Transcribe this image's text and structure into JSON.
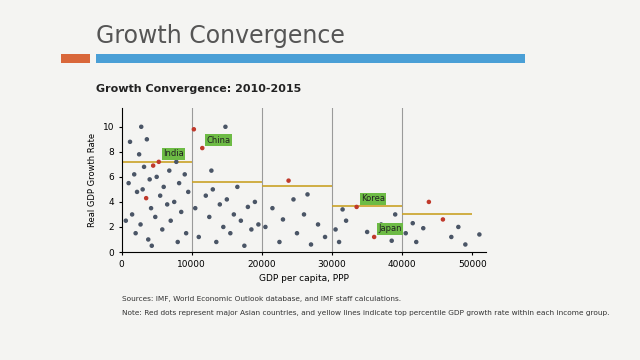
{
  "slide_title": "Growth Convergence",
  "chart_data": {
    "type": "scatter",
    "title": "Growth Convergence: 2010-2015",
    "x_label": "GDP per capita, PPP",
    "y_label": "Real GDP Growth Rate",
    "x": [
      1000,
      1500,
      1800,
      2000,
      2200,
      2500,
      2700,
      3000,
      3200,
      3800,
      4000,
      4200,
      4800,
      5000,
      5500,
      5800,
      6000,
      6500,
      6800,
      7000,
      7500,
      8000,
      8200,
      8500,
      9000,
      9200,
      9500,
      2800,
      1200,
      3600,
      6200,
      7800,
      600,
      4300,
      10500,
      11000,
      12000,
      12500,
      13000,
      13500,
      14000,
      14500,
      15000,
      15500,
      16000,
      16500,
      17000,
      17500,
      18000,
      18500,
      19000,
      19500,
      14800,
      12800,
      20500,
      21500,
      22500,
      23000,
      24500,
      25000,
      26000,
      27000,
      28000,
      29000,
      26500,
      30500,
      31000,
      32000,
      35000,
      37000,
      38500,
      39000,
      31500,
      40500,
      41500,
      42000,
      43000,
      47000,
      48000,
      49000,
      51000,
      3500,
      4500,
      5300,
      6300,
      10300,
      11500,
      23800,
      33500,
      36000,
      43800,
      45800
    ],
    "values": [
      5.5,
      3.0,
      6.2,
      1.5,
      4.8,
      7.8,
      2.2,
      5.0,
      6.8,
      1.0,
      5.8,
      3.5,
      2.8,
      6.0,
      4.5,
      1.8,
      5.2,
      3.8,
      6.5,
      2.5,
      4.0,
      0.8,
      5.5,
      3.2,
      6.2,
      1.5,
      4.8,
      10.0,
      8.8,
      9.0,
      8.0,
      7.2,
      2.5,
      0.5,
      3.5,
      1.2,
      4.5,
      2.8,
      5.0,
      0.8,
      3.8,
      2.0,
      4.2,
      1.5,
      3.0,
      5.2,
      2.5,
      0.5,
      3.6,
      1.8,
      4.0,
      2.2,
      10.0,
      6.5,
      2.0,
      3.5,
      0.8,
      2.6,
      4.2,
      1.5,
      3.0,
      0.6,
      2.2,
      1.2,
      4.6,
      1.8,
      0.8,
      2.5,
      1.6,
      2.2,
      0.9,
      3.0,
      3.4,
      1.5,
      2.3,
      0.8,
      1.9,
      1.2,
      2.0,
      0.6,
      1.4,
      4.3,
      6.9,
      7.2,
      7.6,
      9.8,
      8.3,
      5.7,
      3.6,
      1.2,
      4.0,
      2.6
    ],
    "colors": [
      "#4a5566",
      "#4a5566",
      "#4a5566",
      "#4a5566",
      "#4a5566",
      "#4a5566",
      "#4a5566",
      "#4a5566",
      "#4a5566",
      "#4a5566",
      "#4a5566",
      "#4a5566",
      "#4a5566",
      "#4a5566",
      "#4a5566",
      "#4a5566",
      "#4a5566",
      "#4a5566",
      "#4a5566",
      "#4a5566",
      "#4a5566",
      "#4a5566",
      "#4a5566",
      "#4a5566",
      "#4a5566",
      "#4a5566",
      "#4a5566",
      "#4a5566",
      "#4a5566",
      "#4a5566",
      "#4a5566",
      "#4a5566",
      "#4a5566",
      "#4a5566",
      "#4a5566",
      "#4a5566",
      "#4a5566",
      "#4a5566",
      "#4a5566",
      "#4a5566",
      "#4a5566",
      "#4a5566",
      "#4a5566",
      "#4a5566",
      "#4a5566",
      "#4a5566",
      "#4a5566",
      "#4a5566",
      "#4a5566",
      "#4a5566",
      "#4a5566",
      "#4a5566",
      "#4a5566",
      "#4a5566",
      "#4a5566",
      "#4a5566",
      "#4a5566",
      "#4a5566",
      "#4a5566",
      "#4a5566",
      "#4a5566",
      "#4a5566",
      "#4a5566",
      "#4a5566",
      "#4a5566",
      "#4a5566",
      "#4a5566",
      "#4a5566",
      "#4a5566",
      "#4a5566",
      "#4a5566",
      "#4a5566",
      "#4a5566",
      "#4a5566",
      "#4a5566",
      "#4a5566",
      "#4a5566",
      "#4a5566",
      "#4a5566",
      "#4a5566",
      "#4a5566",
      "#c0392b",
      "#c0392b",
      "#c0392b",
      "#c0392b",
      "#c0392b",
      "#c0392b",
      "#c0392b",
      "#c0392b",
      "#c0392b",
      "#c0392b",
      "#c0392b"
    ],
    "point_labels": [
      null,
      null,
      null,
      null,
      null,
      null,
      null,
      null,
      null,
      null,
      null,
      null,
      null,
      null,
      null,
      null,
      null,
      null,
      null,
      null,
      null,
      null,
      null,
      null,
      null,
      null,
      null,
      null,
      null,
      null,
      null,
      null,
      null,
      null,
      null,
      null,
      null,
      null,
      null,
      null,
      null,
      null,
      null,
      null,
      null,
      null,
      null,
      null,
      null,
      null,
      null,
      null,
      null,
      null,
      null,
      null,
      null,
      null,
      null,
      null,
      null,
      null,
      null,
      null,
      null,
      null,
      null,
      null,
      null,
      null,
      null,
      null,
      null,
      null,
      null,
      null,
      null,
      null,
      null,
      null,
      null,
      null,
      null,
      "India",
      null,
      null,
      "China",
      null,
      "Korea",
      "Japan",
      null,
      null
    ],
    "top_percentile": [
      {
        "from": 0,
        "to": 10000,
        "value": 7.2
      },
      {
        "from": 10000,
        "to": 20000,
        "value": 5.6
      },
      {
        "from": 20000,
        "to": 30000,
        "value": 5.3
      },
      {
        "from": 30000,
        "to": 40000,
        "value": 3.7
      },
      {
        "from": 40000,
        "to": 50000,
        "value": 3.0
      }
    ],
    "xlim": [
      0,
      52000
    ],
    "xticks": [
      0,
      10000,
      20000,
      30000,
      40000,
      50000
    ],
    "ylim": [
      0,
      11.5
    ],
    "yticks": [
      0,
      2,
      4,
      6,
      8,
      10
    ],
    "grid": false
  },
  "notes": [
    "Sources: IMF, World Economic Outlook database, and IMF staff calculations.",
    "Note: Red dots represent major Asian countries, and yellow lines indicate top percentile GDP growth rate within each income group."
  ]
}
